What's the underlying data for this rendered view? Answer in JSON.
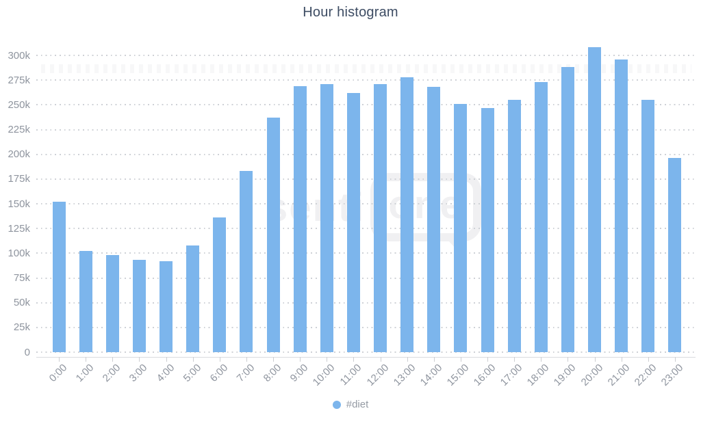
{
  "title": "Hour histogram",
  "watermark": {
    "prefix": "senti",
    "boxed": "one"
  },
  "legend": {
    "items": [
      {
        "label": "#diet",
        "marker_color": "#7cb5ec"
      }
    ]
  },
  "colors": {
    "bar": "#7cb5ec",
    "title_text": "#3d4c63",
    "axis_label": "#8e949e",
    "legend_text": "#959ba4",
    "grid_dot": "#ced1d6",
    "axis_line": "#d9dbde",
    "tick": "#ccced2",
    "watermark": "#f0f0f2"
  },
  "chart_data": {
    "type": "bar",
    "title": "Hour histogram",
    "categories": [
      "0:00",
      "1:00",
      "2:00",
      "3:00",
      "4:00",
      "5:00",
      "6:00",
      "7:00",
      "8:00",
      "9:00",
      "10:00",
      "11:00",
      "12:00",
      "13:00",
      "14:00",
      "15:00",
      "16:00",
      "17:00",
      "18:00",
      "19:00",
      "20:00",
      "21:00",
      "22:00",
      "23:00"
    ],
    "series": [
      {
        "name": "#diet",
        "color": "#7cb5ec",
        "values": [
          152000,
          102000,
          98000,
          93000,
          92000,
          108000,
          136000,
          183000,
          237000,
          269000,
          271000,
          262000,
          271000,
          278000,
          268000,
          251000,
          247000,
          255000,
          273000,
          288000,
          308000,
          296000,
          255000,
          196000
        ]
      }
    ],
    "xlabel": "",
    "ylabel": "",
    "ylim": [
      0,
      310000
    ],
    "yticks": [
      0,
      25000,
      50000,
      75000,
      100000,
      125000,
      150000,
      175000,
      200000,
      225000,
      250000,
      275000,
      300000
    ],
    "ytick_labels": [
      "0",
      "25k",
      "50k",
      "75k",
      "100k",
      "125k",
      "150k",
      "175k",
      "200k",
      "225k",
      "250k",
      "275k",
      "300k"
    ],
    "grid": "horizontal-dotted",
    "x_label_rotation": -45,
    "legend_position": "bottom-center"
  }
}
